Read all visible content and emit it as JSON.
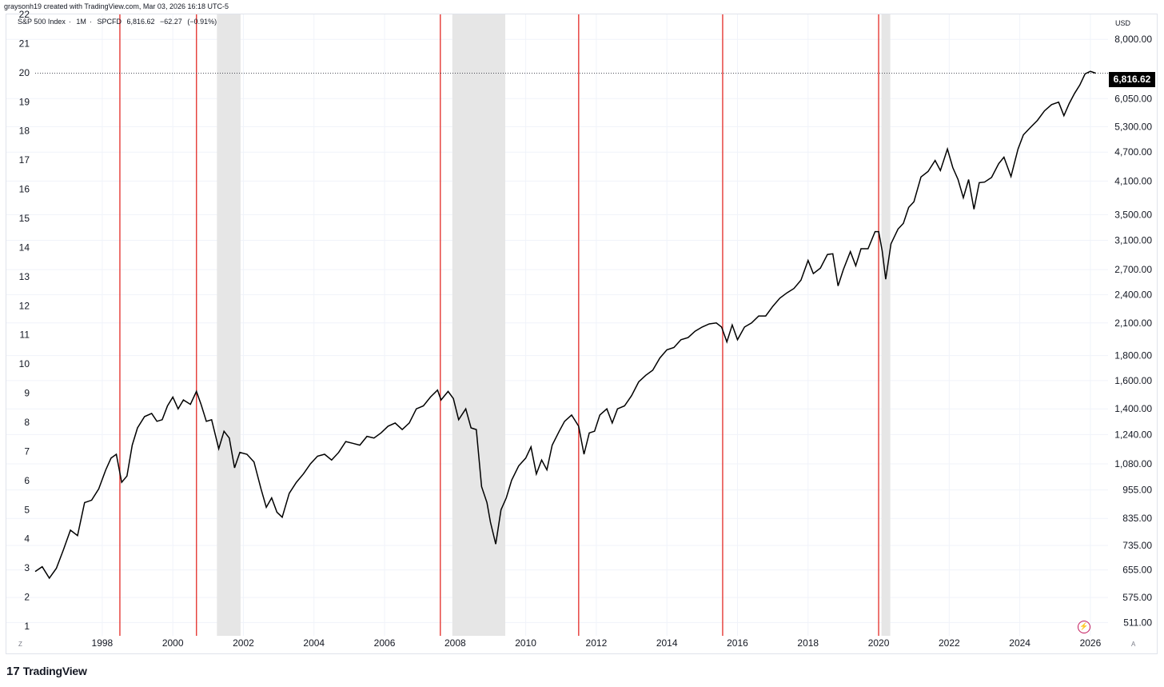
{
  "watermark_top": "graysonh19 created with TradingView.com, Mar 03, 2026 16:18 UTC-5",
  "legend": {
    "name": "S&P 500 Index",
    "interval": "1M",
    "exchange": "SPCFD",
    "price": "6,816.62",
    "change": "−62.27",
    "change_pct": "(−0.91%)"
  },
  "currency_label": "USD",
  "last_price_badge": "6,816.62",
  "corner_left_bottom": "Z",
  "corner_right_bottom": "A",
  "footer_brand": "TradingView",
  "footer_mark": "17",
  "colors": {
    "line": "#000000",
    "event_lines": "#e53935",
    "shaded": "#e6e6e6",
    "grid": "#f0f3fa"
  },
  "chart_data": {
    "type": "line",
    "title": "",
    "x_axis": {
      "type": "time",
      "range": [
        1996.1,
        2026.5
      ],
      "ticks": [
        "1998",
        "2000",
        "2002",
        "2004",
        "2006",
        "2008",
        "2010",
        "2012",
        "2014",
        "2016",
        "2018",
        "2020",
        "2022",
        "2024",
        "2026"
      ]
    },
    "y_axis_right": {
      "scale": "log",
      "range": [
        480,
        9000
      ],
      "ticks": [
        "8,000.00",
        "6,050.00",
        "5,300.00",
        "4,700.00",
        "4,100.00",
        "3,500.00",
        "3,100.00",
        "2,700.00",
        "2,400.00",
        "2,100.00",
        "1,800.00",
        "1,600.00",
        "1,400.00",
        "1,240.00",
        "1,080.00",
        "955.00",
        "835.00",
        "735.00",
        "655.00",
        "575.00",
        "511.00"
      ]
    },
    "y_axis_left": {
      "ticks": [
        "22",
        "21",
        "20",
        "19",
        "18",
        "17",
        "16",
        "15",
        "14",
        "13",
        "12",
        "11",
        "10",
        "9",
        "8",
        "7",
        "6",
        "5",
        "4",
        "3",
        "2",
        "1"
      ]
    },
    "last_value": 6816.62,
    "shaded_periods": [
      [
        2001.25,
        2001.92
      ],
      [
        2007.92,
        2009.42
      ],
      [
        2020.08,
        2020.33
      ]
    ],
    "event_lines": [
      1998.5,
      2000.67,
      2007.58,
      2011.5,
      2015.58,
      2020.0
    ],
    "series": [
      {
        "points": [
          [
            1996.1,
            650
          ],
          [
            1996.3,
            665
          ],
          [
            1996.5,
            630
          ],
          [
            1996.7,
            660
          ],
          [
            1996.9,
            720
          ],
          [
            1997.1,
            790
          ],
          [
            1997.3,
            770
          ],
          [
            1997.5,
            900
          ],
          [
            1997.7,
            910
          ],
          [
            1997.9,
            960
          ],
          [
            1998.1,
            1050
          ],
          [
            1998.25,
            1110
          ],
          [
            1998.4,
            1130
          ],
          [
            1998.55,
            990
          ],
          [
            1998.7,
            1020
          ],
          [
            1998.85,
            1180
          ],
          [
            1999.0,
            1280
          ],
          [
            1999.2,
            1350
          ],
          [
            1999.4,
            1370
          ],
          [
            1999.55,
            1320
          ],
          [
            1999.7,
            1330
          ],
          [
            1999.85,
            1420
          ],
          [
            2000.0,
            1480
          ],
          [
            2000.15,
            1400
          ],
          [
            2000.3,
            1460
          ],
          [
            2000.5,
            1430
          ],
          [
            2000.67,
            1520
          ],
          [
            2000.8,
            1430
          ],
          [
            2000.95,
            1320
          ],
          [
            2001.1,
            1330
          ],
          [
            2001.3,
            1160
          ],
          [
            2001.45,
            1260
          ],
          [
            2001.6,
            1220
          ],
          [
            2001.75,
            1060
          ],
          [
            2001.9,
            1140
          ],
          [
            2002.1,
            1130
          ],
          [
            2002.3,
            1090
          ],
          [
            2002.5,
            960
          ],
          [
            2002.65,
            880
          ],
          [
            2002.8,
            920
          ],
          [
            2002.95,
            860
          ],
          [
            2003.1,
            840
          ],
          [
            2003.3,
            940
          ],
          [
            2003.5,
            990
          ],
          [
            2003.7,
            1030
          ],
          [
            2003.9,
            1080
          ],
          [
            2004.1,
            1120
          ],
          [
            2004.3,
            1130
          ],
          [
            2004.5,
            1100
          ],
          [
            2004.7,
            1140
          ],
          [
            2004.9,
            1200
          ],
          [
            2005.1,
            1190
          ],
          [
            2005.3,
            1180
          ],
          [
            2005.5,
            1230
          ],
          [
            2005.7,
            1220
          ],
          [
            2005.9,
            1250
          ],
          [
            2006.1,
            1290
          ],
          [
            2006.3,
            1310
          ],
          [
            2006.5,
            1270
          ],
          [
            2006.7,
            1310
          ],
          [
            2006.9,
            1400
          ],
          [
            2007.1,
            1420
          ],
          [
            2007.3,
            1480
          ],
          [
            2007.5,
            1530
          ],
          [
            2007.6,
            1460
          ],
          [
            2007.8,
            1520
          ],
          [
            2007.95,
            1470
          ],
          [
            2008.1,
            1330
          ],
          [
            2008.3,
            1400
          ],
          [
            2008.45,
            1280
          ],
          [
            2008.6,
            1270
          ],
          [
            2008.75,
            970
          ],
          [
            2008.9,
            900
          ],
          [
            2009.0,
            820
          ],
          [
            2009.15,
            740
          ],
          [
            2009.3,
            870
          ],
          [
            2009.45,
            920
          ],
          [
            2009.6,
            1000
          ],
          [
            2009.8,
            1070
          ],
          [
            2010.0,
            1110
          ],
          [
            2010.15,
            1170
          ],
          [
            2010.3,
            1030
          ],
          [
            2010.45,
            1100
          ],
          [
            2010.6,
            1050
          ],
          [
            2010.75,
            1180
          ],
          [
            2010.95,
            1260
          ],
          [
            2011.1,
            1320
          ],
          [
            2011.3,
            1360
          ],
          [
            2011.5,
            1290
          ],
          [
            2011.65,
            1130
          ],
          [
            2011.8,
            1250
          ],
          [
            2011.95,
            1260
          ],
          [
            2012.1,
            1360
          ],
          [
            2012.3,
            1400
          ],
          [
            2012.45,
            1310
          ],
          [
            2012.6,
            1400
          ],
          [
            2012.8,
            1420
          ],
          [
            2013.0,
            1490
          ],
          [
            2013.2,
            1590
          ],
          [
            2013.4,
            1640
          ],
          [
            2013.6,
            1680
          ],
          [
            2013.8,
            1780
          ],
          [
            2014.0,
            1850
          ],
          [
            2014.2,
            1870
          ],
          [
            2014.4,
            1940
          ],
          [
            2014.6,
            1960
          ],
          [
            2014.8,
            2020
          ],
          [
            2015.0,
            2060
          ],
          [
            2015.2,
            2090
          ],
          [
            2015.4,
            2100
          ],
          [
            2015.55,
            2060
          ],
          [
            2015.7,
            1920
          ],
          [
            2015.85,
            2080
          ],
          [
            2016.0,
            1940
          ],
          [
            2016.2,
            2060
          ],
          [
            2016.4,
            2100
          ],
          [
            2016.6,
            2170
          ],
          [
            2016.8,
            2170
          ],
          [
            2017.0,
            2270
          ],
          [
            2017.2,
            2360
          ],
          [
            2017.4,
            2420
          ],
          [
            2017.6,
            2470
          ],
          [
            2017.8,
            2570
          ],
          [
            2018.0,
            2820
          ],
          [
            2018.15,
            2650
          ],
          [
            2018.35,
            2720
          ],
          [
            2018.55,
            2900
          ],
          [
            2018.7,
            2910
          ],
          [
            2018.85,
            2500
          ],
          [
            2019.0,
            2700
          ],
          [
            2019.2,
            2940
          ],
          [
            2019.35,
            2750
          ],
          [
            2019.5,
            2980
          ],
          [
            2019.7,
            2980
          ],
          [
            2019.9,
            3230
          ],
          [
            2020.0,
            3230
          ],
          [
            2020.1,
            2950
          ],
          [
            2020.2,
            2580
          ],
          [
            2020.35,
            3050
          ],
          [
            2020.55,
            3270
          ],
          [
            2020.7,
            3360
          ],
          [
            2020.85,
            3620
          ],
          [
            2021.0,
            3720
          ],
          [
            2021.2,
            4180
          ],
          [
            2021.4,
            4290
          ],
          [
            2021.6,
            4520
          ],
          [
            2021.75,
            4310
          ],
          [
            2021.95,
            4770
          ],
          [
            2022.1,
            4370
          ],
          [
            2022.25,
            4130
          ],
          [
            2022.4,
            3790
          ],
          [
            2022.55,
            4130
          ],
          [
            2022.7,
            3590
          ],
          [
            2022.85,
            4070
          ],
          [
            2023.0,
            4080
          ],
          [
            2023.2,
            4170
          ],
          [
            2023.4,
            4450
          ],
          [
            2023.55,
            4590
          ],
          [
            2023.75,
            4190
          ],
          [
            2023.95,
            4770
          ],
          [
            2024.1,
            5100
          ],
          [
            2024.3,
            5280
          ],
          [
            2024.5,
            5460
          ],
          [
            2024.7,
            5710
          ],
          [
            2024.9,
            5880
          ],
          [
            2025.1,
            5950
          ],
          [
            2025.25,
            5580
          ],
          [
            2025.4,
            5910
          ],
          [
            2025.55,
            6200
          ],
          [
            2025.7,
            6450
          ],
          [
            2025.85,
            6800
          ],
          [
            2026.0,
            6880
          ],
          [
            2026.15,
            6820
          ]
        ]
      }
    ]
  }
}
